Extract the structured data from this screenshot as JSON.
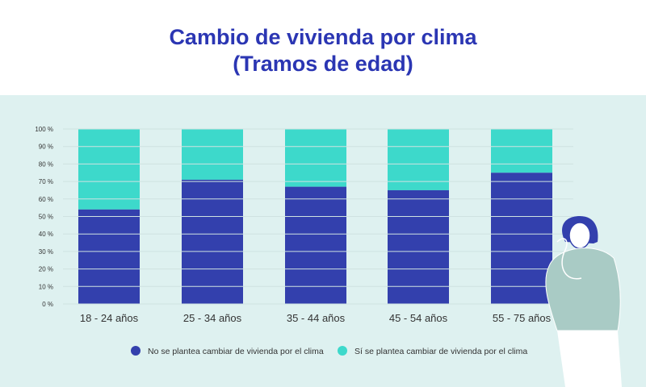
{
  "colors": {
    "no": "#3340ad",
    "si": "#3dd9cb",
    "title": "#2b36b3"
  },
  "chart_data": {
    "type": "bar",
    "stacked": true,
    "title": "Cambio de vivienda por clima",
    "subtitle": "(Tramos de edad)",
    "categories": [
      "18 - 24 años",
      "25 - 34 años",
      "35 - 44 años",
      "45 - 54 años",
      "55 - 75 años"
    ],
    "series": [
      {
        "name": "No se plantea cambiar de vivienda por el clima",
        "values": [
          54,
          71,
          67,
          65,
          75
        ]
      },
      {
        "name": "Sí se plantea cambiar de vivienda por el clima",
        "values": [
          46,
          29,
          33,
          35,
          25
        ]
      }
    ],
    "ylim": [
      0,
      100
    ],
    "yticks": [
      "0 %",
      "10 %",
      "20 %",
      "30 %",
      "40 %",
      "50 %",
      "60 %",
      "70 %",
      "80 %",
      "90 %",
      "100 %"
    ],
    "grid": true,
    "legend": "bottom"
  }
}
